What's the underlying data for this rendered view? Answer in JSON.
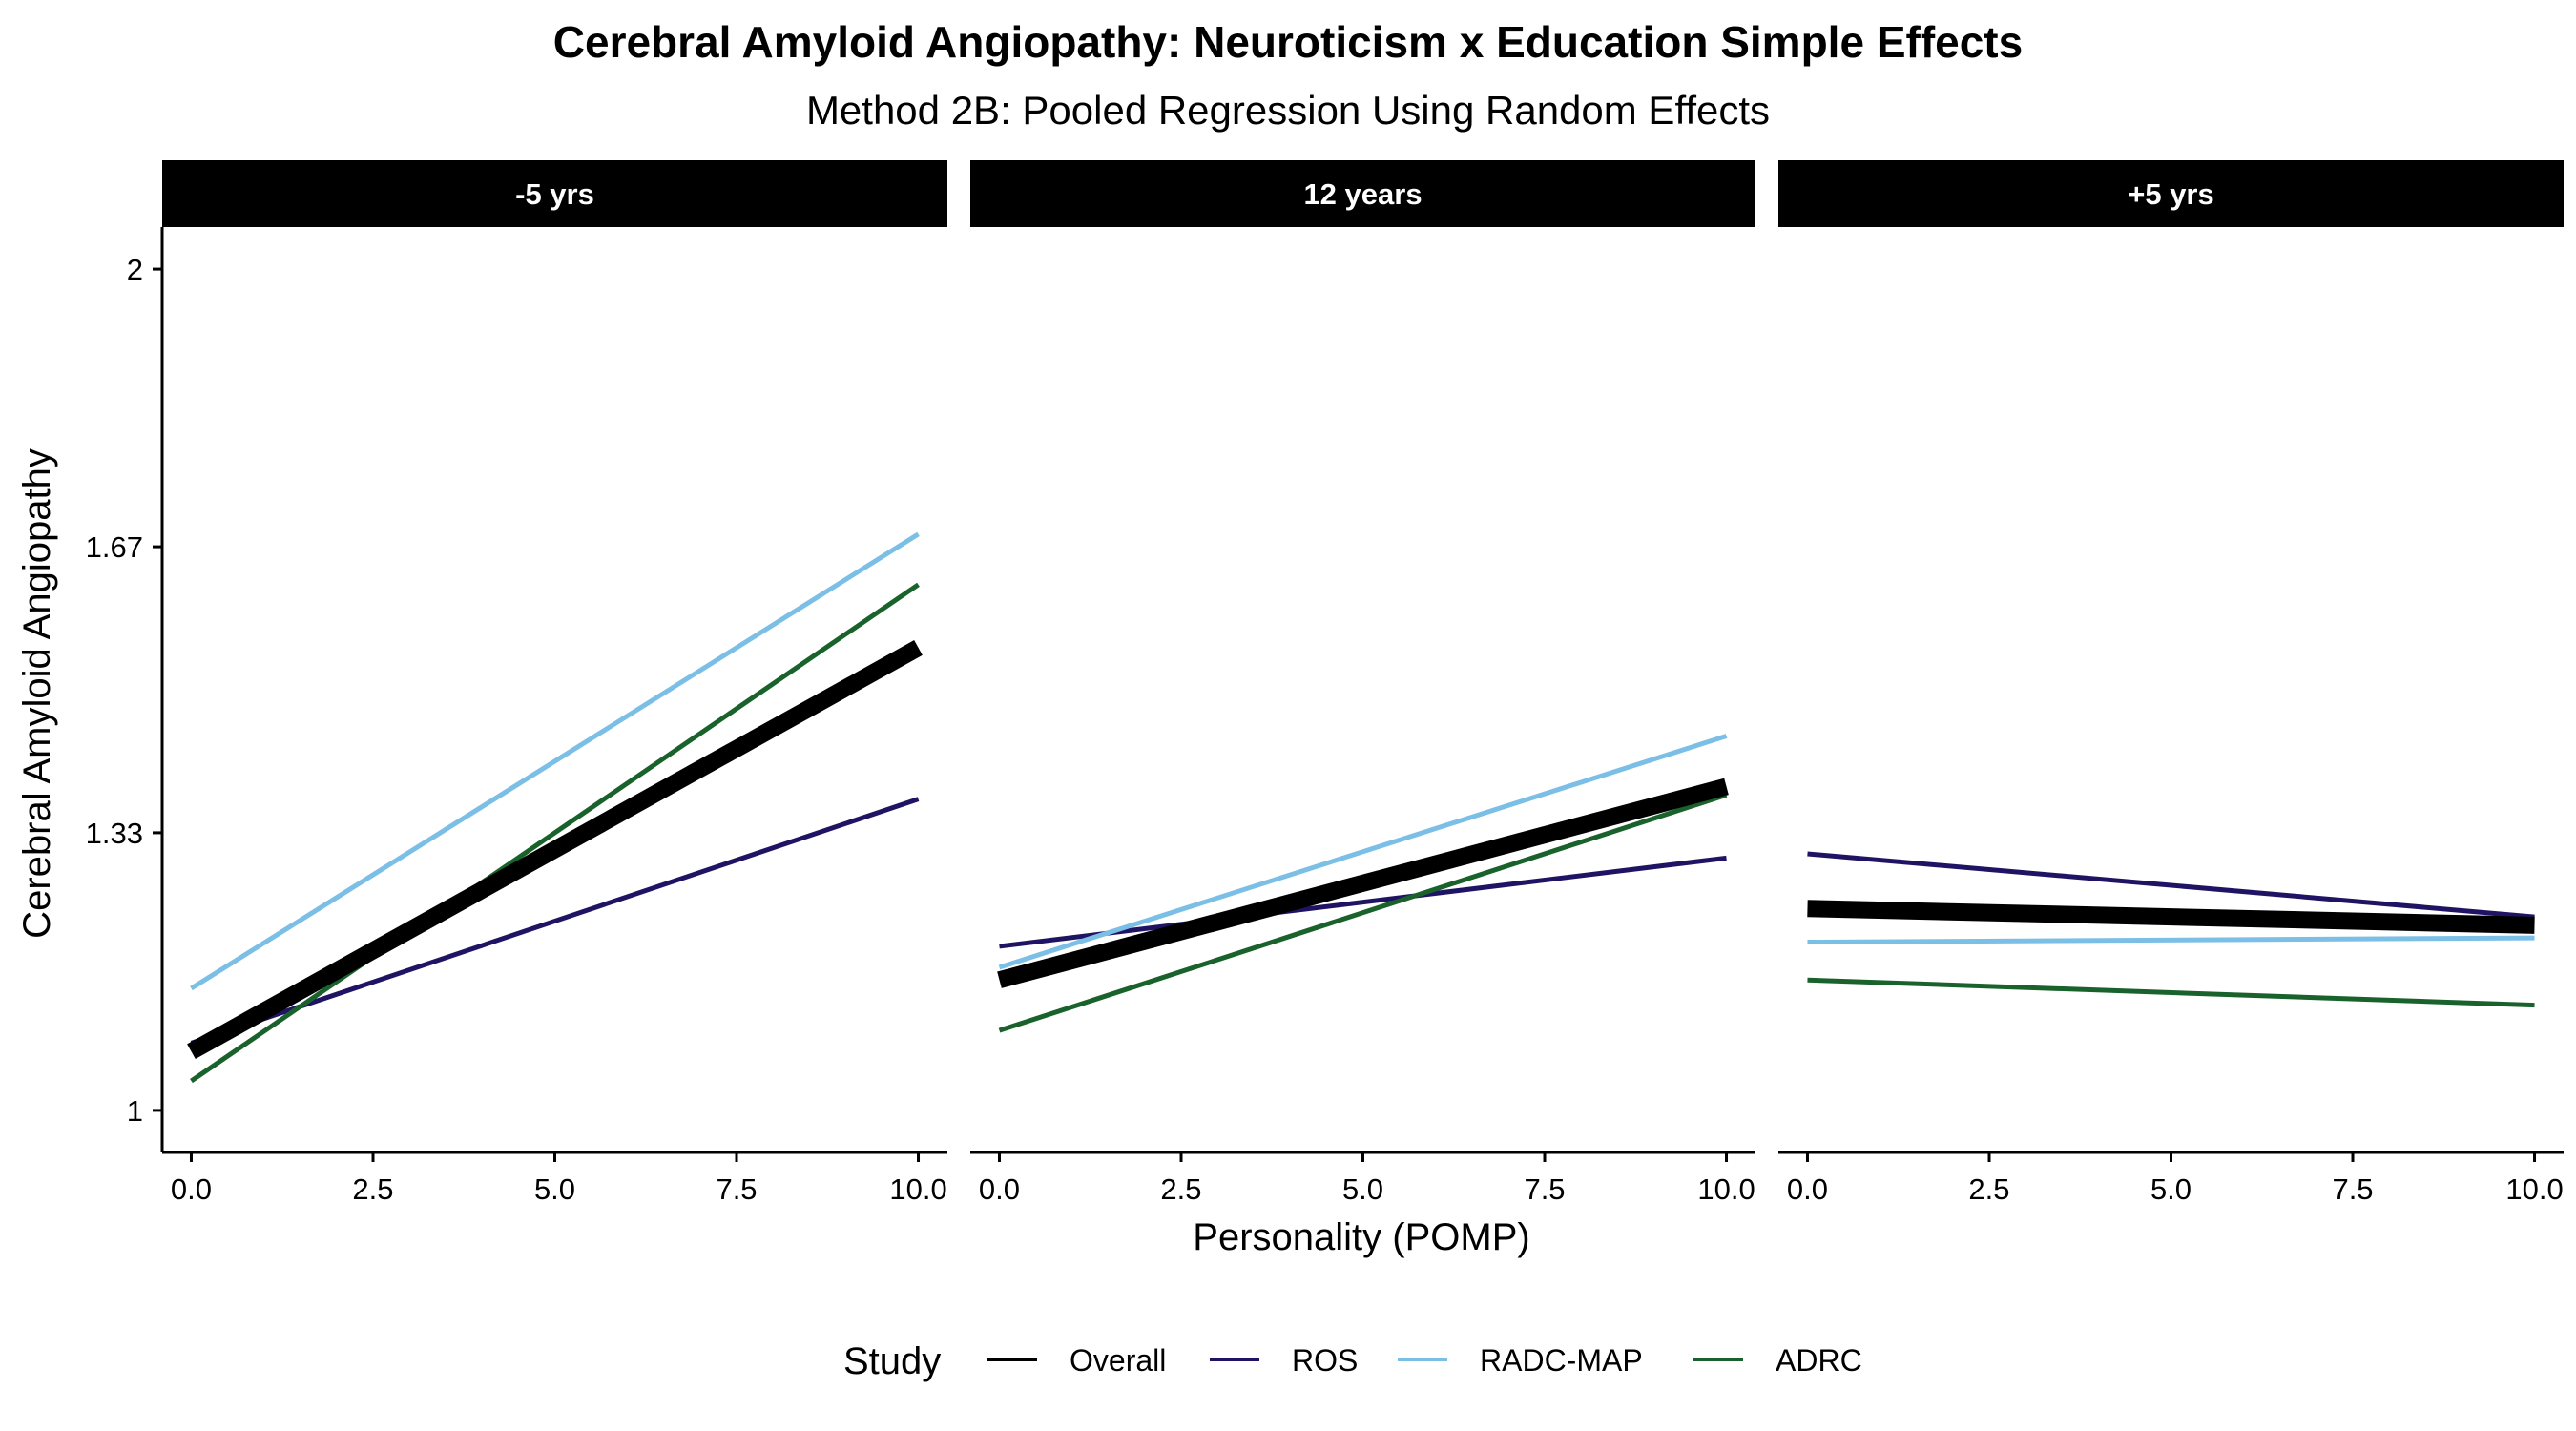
{
  "chart_data": {
    "type": "line",
    "title": "Cerebral Amyloid Angiopathy: Neuroticism x Education Simple Effects",
    "subtitle": "Method 2B: Pooled Regression Using Random Effects",
    "xlabel": "Personality (POMP)",
    "ylabel": "Cerebral Amyloid Angiopathy",
    "xlim": [
      -0.4,
      10.4
    ],
    "ylim": [
      0.95,
      2.05
    ],
    "x_ticks": [
      0,
      2.5,
      5,
      7.5,
      10
    ],
    "x_tick_labels": [
      "0.0",
      "2.5",
      "5.0",
      "7.5",
      "10.0"
    ],
    "y_ticks": [
      1,
      1.33,
      1.67,
      2
    ],
    "y_tick_labels": [
      "1",
      "1.33",
      "1.67",
      "2"
    ],
    "grid": false,
    "legend": {
      "title": "Study",
      "position": "bottom",
      "entries": [
        "Overall",
        "ROS",
        "RADC-MAP",
        "ADRC"
      ]
    },
    "colors": {
      "Overall": "#000000",
      "ROS": "#1f1464",
      "RADC-MAP": "#7cbfe6",
      "ADRC": "#19622c"
    },
    "facets": [
      {
        "label": "-5 yrs",
        "series": [
          {
            "name": "ROS",
            "x": [
              0,
              10
            ],
            "y": [
              1.08,
              1.37
            ]
          },
          {
            "name": "RADC-MAP",
            "x": [
              0,
              10
            ],
            "y": [
              1.145,
              1.685
            ]
          },
          {
            "name": "ADRC",
            "x": [
              0,
              10
            ],
            "y": [
              1.035,
              1.625
            ]
          },
          {
            "name": "Overall",
            "x": [
              0,
              10
            ],
            "y": [
              1.07,
              1.55
            ]
          }
        ]
      },
      {
        "label": "12 years",
        "series": [
          {
            "name": "ROS",
            "x": [
              0,
              10
            ],
            "y": [
              1.195,
              1.3
            ]
          },
          {
            "name": "RADC-MAP",
            "x": [
              0,
              10
            ],
            "y": [
              1.17,
              1.445
            ]
          },
          {
            "name": "ADRC",
            "x": [
              0,
              10
            ],
            "y": [
              1.095,
              1.375
            ]
          },
          {
            "name": "Overall",
            "x": [
              0,
              10
            ],
            "y": [
              1.155,
              1.385
            ]
          }
        ]
      },
      {
        "label": "+5 yrs",
        "series": [
          {
            "name": "ROS",
            "x": [
              0,
              10
            ],
            "y": [
              1.305,
              1.23
            ]
          },
          {
            "name": "RADC-MAP",
            "x": [
              0,
              10
            ],
            "y": [
              1.2,
              1.205
            ]
          },
          {
            "name": "ADRC",
            "x": [
              0,
              10
            ],
            "y": [
              1.155,
              1.125
            ]
          },
          {
            "name": "Overall",
            "x": [
              0,
              10
            ],
            "y": [
              1.24,
              1.22
            ]
          }
        ]
      }
    ]
  }
}
